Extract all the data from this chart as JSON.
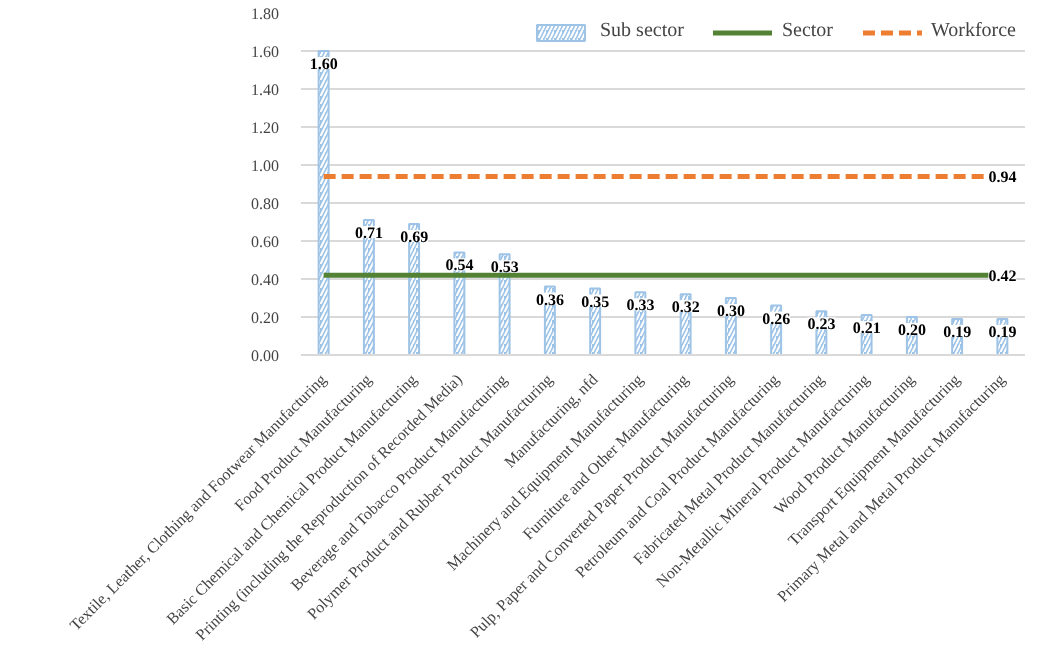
{
  "chart_data": {
    "type": "bar",
    "categories": [
      "Textile, Leather, Clothing and Footwear Manufacturing",
      "Food Product Manufacturing",
      "Basic Chemical and Chemical Product Manufacturing",
      "Printing (including the Reproduction of Recorded Media)",
      "Beverage and Tobacco Product Manufacturing",
      "Polymer Product and Rubber Product Manufacturing",
      "Manufacturing, nfd",
      "Machinery and Equipment Manufacturing",
      "Furniture and Other Manufacturing",
      "Pulp, Paper and Converted Paper Product Manufacturing",
      "Petroleum and Coal Product Manufacturing",
      "Fabricated Metal Product Manufacturing",
      "Non-Metallic Mineral Product Manufacturing",
      "Wood Product Manufacturing",
      "Transport Equipment Manufacturing",
      "Primary Metal and Metal Product Manufacturing"
    ],
    "series": [
      {
        "name": "Sub sector",
        "color": "#9dc3e6",
        "values": [
          1.6,
          0.71,
          0.69,
          0.54,
          0.53,
          0.36,
          0.35,
          0.33,
          0.32,
          0.3,
          0.26,
          0.23,
          0.21,
          0.2,
          0.19,
          0.19
        ],
        "value_labels": [
          "1.60",
          "0.71",
          "0.69",
          "0.54",
          "0.53",
          "0.36",
          "0.35",
          "0.33",
          "0.32",
          "0.30",
          "0.26",
          "0.23",
          "0.21",
          "0.20",
          "0.19",
          "0.19"
        ]
      },
      {
        "name": "Sector",
        "type": "line",
        "line_style": "solid",
        "color": "#548235",
        "values": [
          0.42,
          0.42,
          0.42,
          0.42,
          0.42,
          0.42,
          0.42,
          0.42,
          0.42,
          0.42,
          0.42,
          0.42,
          0.42,
          0.42,
          0.42,
          0.42
        ],
        "value_labels": [
          null,
          null,
          null,
          null,
          null,
          null,
          null,
          null,
          null,
          null,
          null,
          null,
          null,
          null,
          null,
          "0.42"
        ]
      },
      {
        "name": "Workforce",
        "type": "line",
        "line_style": "dashed",
        "color": "#ed7d31",
        "values": [
          0.94,
          0.94,
          0.94,
          0.94,
          0.94,
          0.94,
          0.94,
          0.94,
          0.94,
          0.94,
          0.94,
          0.94,
          0.94,
          0.94,
          0.94,
          0.94
        ],
        "value_labels": [
          null,
          null,
          null,
          null,
          null,
          null,
          null,
          null,
          null,
          null,
          null,
          null,
          null,
          null,
          null,
          "0.94"
        ]
      }
    ],
    "ylim": [
      0,
      1.8
    ],
    "yticks": [
      {
        "value": 0,
        "label": "0.00"
      },
      {
        "value": 0.2,
        "label": "0.20"
      },
      {
        "value": 0.4,
        "label": "0.40"
      },
      {
        "value": 0.6,
        "label": "0.60"
      },
      {
        "value": 0.8,
        "label": "0.80"
      },
      {
        "value": 1.0,
        "label": "1.00"
      },
      {
        "value": 1.2,
        "label": "1.20"
      },
      {
        "value": 1.4,
        "label": "1.40"
      },
      {
        "value": 1.6,
        "label": "1.60"
      },
      {
        "value": 1.8,
        "label": "1.80"
      }
    ],
    "grid": "y",
    "legend": "top right"
  }
}
